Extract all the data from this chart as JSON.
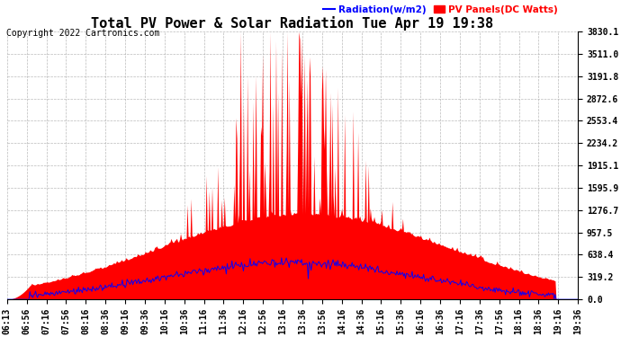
{
  "title": "Total PV Power & Solar Radiation Tue Apr 19 19:38",
  "copyright": "Copyright 2022 Cartronics.com",
  "legend_radiation": "Radiation(w/m2)",
  "legend_pv": "PV Panels(DC Watts)",
  "legend_radiation_color": "blue",
  "legend_pv_color": "red",
  "y_ticks": [
    0.0,
    319.2,
    638.4,
    957.5,
    1276.7,
    1595.9,
    1915.1,
    2234.2,
    2553.4,
    2872.6,
    3191.8,
    3511.0,
    3830.1
  ],
  "y_max": 3830.1,
  "background_color": "#ffffff",
  "plot_bg_color": "#ffffff",
  "grid_color": "#aaaaaa",
  "title_fontsize": 11,
  "copyright_fontsize": 7,
  "tick_fontsize": 7,
  "num_points": 600
}
